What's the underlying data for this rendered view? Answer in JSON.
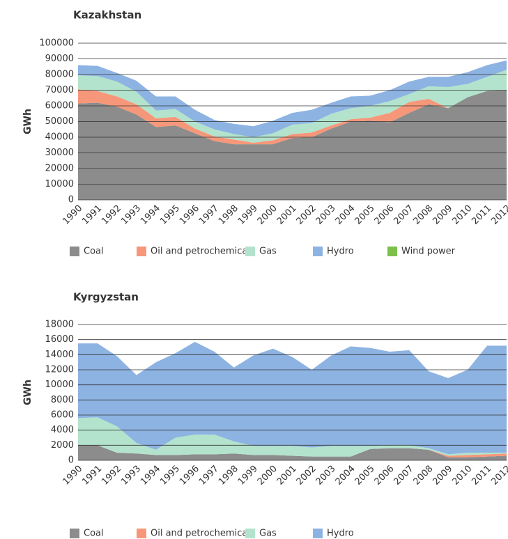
{
  "chart_data": [
    {
      "type": "area",
      "title": "Kazakhstan",
      "y_label": "GWh",
      "categories": [
        "1990",
        "1991",
        "1992",
        "1993",
        "1994",
        "1995",
        "1996",
        "1997",
        "1998",
        "1999",
        "2000",
        "2001",
        "2002",
        "2003",
        "2004",
        "2005",
        "2006",
        "2007",
        "2008",
        "2009",
        "2010",
        "2011",
        "2012"
      ],
      "ylim": [
        0,
        100000
      ],
      "yticks": [
        0,
        10000,
        20000,
        30000,
        40000,
        50000,
        60000,
        70000,
        80000,
        90000,
        100000
      ],
      "grid": true,
      "stacked": true,
      "series": [
        {
          "name": "Coal",
          "color": "#8c8c8c",
          "values": [
            61500,
            62000,
            59500,
            54500,
            46500,
            47500,
            42500,
            37500,
            35500,
            35500,
            35500,
            39500,
            40000,
            45500,
            50000,
            50500,
            49500,
            55500,
            61000,
            58500,
            65500,
            69500,
            70000
          ]
        },
        {
          "name": "Oil and petrochemicals",
          "color": "#f7977a",
          "values": [
            9000,
            7500,
            6500,
            6500,
            5500,
            5500,
            3000,
            3000,
            3000,
            1000,
            2500,
            2500,
            3000,
            2000,
            1500,
            2000,
            6000,
            7000,
            3500,
            0,
            0,
            0,
            0
          ]
        },
        {
          "name": "Gas",
          "color": "#b3e3cc",
          "values": [
            9000,
            9500,
            9500,
            8000,
            5000,
            5000,
            4500,
            4500,
            3500,
            3500,
            4500,
            6000,
            6000,
            7500,
            7000,
            7500,
            7500,
            5000,
            8000,
            13500,
            8500,
            9000,
            13000
          ]
        },
        {
          "name": "Hydro",
          "color": "#8db3e2",
          "values": [
            6500,
            6500,
            5500,
            7000,
            9000,
            8000,
            7500,
            6000,
            6500,
            7000,
            8000,
            7500,
            8500,
            7000,
            7500,
            6500,
            7000,
            8000,
            6000,
            6500,
            7500,
            7500,
            6000
          ]
        },
        {
          "name": "Wind power",
          "color": "#7cc04a",
          "values": [
            0,
            0,
            0,
            0,
            0,
            0,
            0,
            0,
            0,
            0,
            0,
            0,
            0,
            0,
            0,
            0,
            0,
            0,
            0,
            0,
            0,
            0,
            0
          ]
        }
      ]
    },
    {
      "type": "area",
      "title": "Kyrgyzstan",
      "y_label": "GWh",
      "categories": [
        "1990",
        "1991",
        "1992",
        "1993",
        "1994",
        "1995",
        "1996",
        "1997",
        "1998",
        "1999",
        "2000",
        "2001",
        "2002",
        "2003",
        "2004",
        "2005",
        "2006",
        "2007",
        "2008",
        "2009",
        "2010",
        "2011",
        "2012"
      ],
      "ylim": [
        0,
        18000
      ],
      "yticks": [
        0,
        2000,
        4000,
        6000,
        8000,
        10000,
        12000,
        14000,
        16000,
        18000
      ],
      "grid": true,
      "stacked": true,
      "series": [
        {
          "name": "Coal",
          "color": "#8c8c8c",
          "values": [
            2000,
            2000,
            1000,
            900,
            700,
            700,
            800,
            800,
            900,
            700,
            700,
            600,
            500,
            500,
            500,
            1500,
            1600,
            1600,
            1400,
            400,
            400,
            500,
            600
          ]
        },
        {
          "name": "Oil and petrochemicals",
          "color": "#f7977a",
          "values": [
            0,
            0,
            0,
            0,
            0,
            0,
            0,
            0,
            0,
            0,
            0,
            0,
            0,
            0,
            0,
            0,
            0,
            0,
            0,
            200,
            300,
            300,
            300
          ]
        },
        {
          "name": "Gas",
          "color": "#b3e3cc",
          "values": [
            3600,
            3700,
            3500,
            1400,
            700,
            2300,
            2600,
            2600,
            1600,
            1200,
            1200,
            1300,
            1200,
            1400,
            1400,
            400,
            400,
            400,
            200,
            200,
            300,
            200,
            100
          ]
        },
        {
          "name": "Hydro",
          "color": "#8db3e2",
          "values": [
            9900,
            9800,
            9300,
            9000,
            11600,
            11200,
            12300,
            11000,
            9800,
            12000,
            12900,
            11800,
            10300,
            12000,
            13200,
            13000,
            12400,
            12600,
            10200,
            10100,
            11000,
            14200,
            14200
          ]
        }
      ]
    }
  ]
}
